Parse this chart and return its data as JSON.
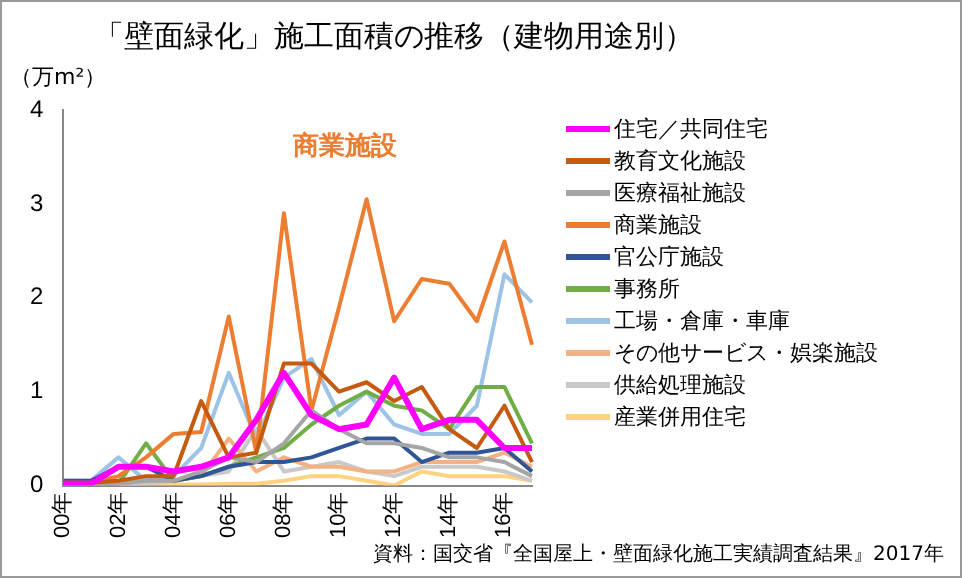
{
  "chart_data": {
    "type": "line",
    "title": "「壁面緑化」施工面積の推移（建物用途別）",
    "ylabel": "（万m²）",
    "categories": [
      "00年",
      null,
      "02年",
      null,
      "04年",
      null,
      "06年",
      null,
      "08年",
      null,
      "10年",
      null,
      "12年",
      null,
      "14年",
      null,
      "16年",
      null
    ],
    "series": [
      {
        "name": "住宅／共同住宅",
        "color": "#ff00ff",
        "values": [
          0.02,
          0.02,
          0.2,
          0.2,
          0.15,
          0.2,
          0.3,
          0.7,
          1.2,
          0.75,
          0.6,
          0.65,
          1.15,
          0.6,
          0.7,
          0.7,
          0.4,
          0.4
        ]
      },
      {
        "name": "教育文化施設",
        "color": "#c55a11",
        "values": [
          0.03,
          0.03,
          0.05,
          0.1,
          0.1,
          0.9,
          0.3,
          0.35,
          1.3,
          1.3,
          1.0,
          1.1,
          0.9,
          1.05,
          0.6,
          0.4,
          0.85,
          0.25
        ]
      },
      {
        "name": "医療福祉施設",
        "color": "#a5a5a5",
        "values": [
          0.02,
          0.02,
          0.02,
          0.05,
          0.05,
          0.15,
          0.3,
          0.25,
          0.45,
          0.8,
          0.6,
          0.45,
          0.45,
          0.4,
          0.3,
          0.3,
          0.25,
          0.1
        ]
      },
      {
        "name": "商業施設",
        "color": "#ed7d31",
        "values": [
          0.03,
          0.03,
          0.1,
          0.3,
          0.55,
          0.57,
          1.8,
          0.35,
          2.9,
          0.8,
          1.9,
          3.05,
          1.75,
          2.2,
          2.15,
          1.75,
          2.6,
          1.5
        ]
      },
      {
        "name": "官公庁施設",
        "color": "#2f5597",
        "values": [
          0.05,
          0.05,
          0.2,
          0.2,
          0.05,
          0.1,
          0.2,
          0.25,
          0.25,
          0.3,
          0.4,
          0.5,
          0.5,
          0.25,
          0.35,
          0.35,
          0.4,
          0.15
        ]
      },
      {
        "name": "事務所",
        "color": "#70ad47",
        "values": [
          0.02,
          0.02,
          0.02,
          0.45,
          0.05,
          0.1,
          0.2,
          0.3,
          0.4,
          0.65,
          0.85,
          1.0,
          0.85,
          0.8,
          0.6,
          1.05,
          1.05,
          0.45
        ]
      },
      {
        "name": "工場・倉庫・車庫",
        "color": "#9dc3e6",
        "values": [
          0.05,
          0.05,
          0.3,
          0.05,
          0.1,
          0.4,
          1.2,
          0.5,
          1.15,
          1.35,
          0.75,
          1.0,
          0.65,
          0.55,
          0.55,
          0.85,
          2.25,
          1.95
        ]
      },
      {
        "name": "その他サービス・娯楽施設",
        "color": "#f4b183",
        "values": [
          0.02,
          0.02,
          0.05,
          0.05,
          0.05,
          0.1,
          0.5,
          0.15,
          0.3,
          0.2,
          0.2,
          0.15,
          0.15,
          0.25,
          0.25,
          0.25,
          0.35,
          0.2
        ]
      },
      {
        "name": "供給処理施設",
        "color": "#c9c9c9",
        "values": [
          0.02,
          0.02,
          0.02,
          0.02,
          0.05,
          0.1,
          0.15,
          0.6,
          0.15,
          0.2,
          0.25,
          0.15,
          0.1,
          0.2,
          0.2,
          0.2,
          0.15,
          0.05
        ]
      },
      {
        "name": "産業併用住宅",
        "color": "#ffd27f",
        "values": [
          null,
          null,
          0,
          0,
          0.01,
          0.01,
          0.02,
          0.02,
          0.05,
          0.1,
          0.1,
          0.05,
          0,
          0.15,
          0.1,
          0.1,
          0.1,
          0.05
        ]
      }
    ],
    "ylim": [
      0,
      4
    ],
    "yticks": [
      0,
      1,
      2,
      3,
      4
    ],
    "grid": false,
    "legend": "right",
    "marker": "none",
    "line_style": "solid",
    "annotations": [
      "商業施設",
      "資料：国交省『全国屋上・壁面緑化施工実績調査結果』2017年"
    ]
  }
}
